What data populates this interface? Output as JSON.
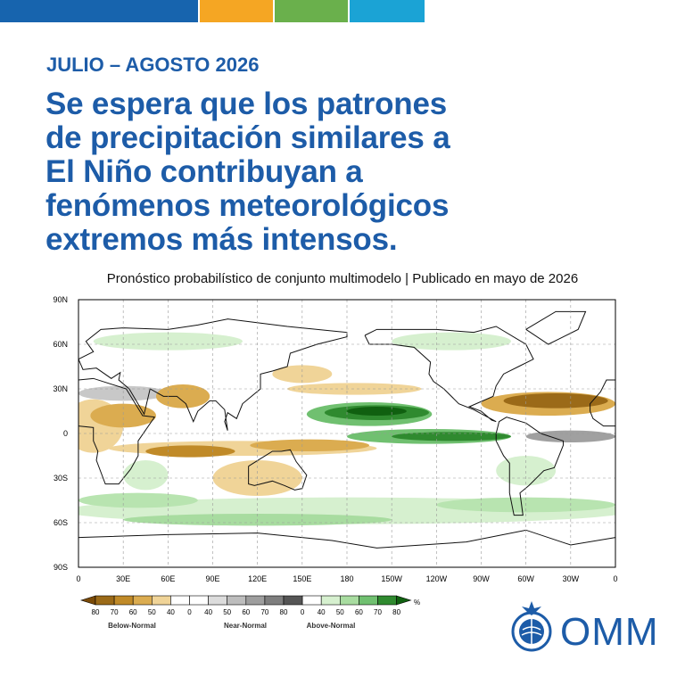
{
  "header": {
    "period": "JULIO – AGOSTO 2026",
    "title_lines": [
      "Se espera que los patrones",
      "de precipitación similares a",
      "El Niño contribuyan a",
      "fenómenos meteorológicos",
      "extremos más intensos."
    ]
  },
  "subtitle": "Pronóstico probabilístico de conjunto multimodelo | Publicado en mayo de 2026",
  "map": {
    "lat_labels": [
      "90N",
      "60N",
      "30N",
      "0",
      "30S",
      "60S",
      "90S"
    ],
    "lon_labels": [
      "0",
      "30E",
      "60E",
      "90E",
      "120E",
      "150E",
      "180",
      "150W",
      "120W",
      "90W",
      "60W",
      "30W",
      "0"
    ]
  },
  "legend": {
    "values": [
      80,
      70,
      60,
      50,
      40,
      0,
      40,
      50,
      60,
      70,
      80,
      0,
      40,
      50,
      60,
      70,
      80
    ],
    "unit": "%",
    "groups": [
      "Below-Normal",
      "Near-Normal",
      "Above-Normal"
    ]
  },
  "logo": {
    "text": "OMM"
  }
}
